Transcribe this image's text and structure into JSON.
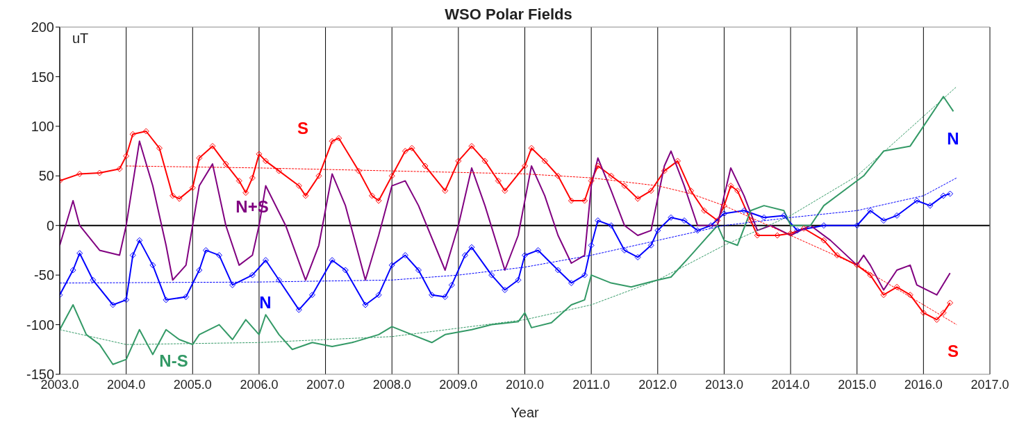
{
  "chart_data": {
    "type": "line",
    "title": "WSO Polar Fields",
    "xlabel": "Year",
    "ylabel": "uT",
    "xlim": [
      2003,
      2017
    ],
    "ylim": [
      -150,
      200
    ],
    "xticks": [
      {
        "value": 2003,
        "label": "2003.0"
      },
      {
        "value": 2004,
        "label": "2004.0"
      },
      {
        "value": 2005,
        "label": "2005.0"
      },
      {
        "value": 2006,
        "label": "2006.0"
      },
      {
        "value": 2007,
        "label": "2007.0"
      },
      {
        "value": 2008,
        "label": "2008.0"
      },
      {
        "value": 2009,
        "label": "2009.0"
      },
      {
        "value": 2010,
        "label": "2010.0"
      },
      {
        "value": 2011,
        "label": "2011.0"
      },
      {
        "value": 2012,
        "label": "2012.0"
      },
      {
        "value": 2013,
        "label": "2013.0"
      },
      {
        "value": 2014,
        "label": "2014.0"
      },
      {
        "value": 2015,
        "label": "2015.0"
      },
      {
        "value": 2016,
        "label": "2016.0"
      },
      {
        "value": 2017,
        "label": "2017.0"
      }
    ],
    "yticks": [
      -150,
      -100,
      -50,
      0,
      50,
      100,
      150,
      200
    ],
    "grid": "x",
    "ref_lines": [
      {
        "axis": "y",
        "value": 0,
        "color": "#000000"
      }
    ],
    "series": [
      {
        "name": "S",
        "color": "#ff0000",
        "marker": "diamond",
        "line_style": "solid",
        "x": [
          2003.0,
          2003.3,
          2003.6,
          2003.9,
          2004.0,
          2004.1,
          2004.3,
          2004.5,
          2004.7,
          2004.8,
          2005.0,
          2005.1,
          2005.3,
          2005.5,
          2005.7,
          2005.8,
          2005.9,
          2006.0,
          2006.1,
          2006.3,
          2006.6,
          2006.7,
          2006.9,
          2007.1,
          2007.2,
          2007.5,
          2007.7,
          2007.8,
          2008.0,
          2008.2,
          2008.3,
          2008.5,
          2008.8,
          2009.0,
          2009.2,
          2009.4,
          2009.6,
          2009.7,
          2010.0,
          2010.1,
          2010.3,
          2010.5,
          2010.7,
          2010.9,
          2011.0,
          2011.1,
          2011.3,
          2011.5,
          2011.7,
          2011.9,
          2012.1,
          2012.3,
          2012.5,
          2012.7,
          2012.9,
          2013.0,
          2013.1,
          2013.2,
          2013.4,
          2013.5,
          2013.8,
          2014.0,
          2014.2,
          2014.5,
          2014.7,
          2015.0,
          2015.2,
          2015.4,
          2015.6,
          2015.8,
          2016.0,
          2016.2,
          2016.3,
          2016.4
        ],
        "values": [
          45,
          52,
          53,
          57,
          70,
          92,
          95,
          78,
          30,
          27,
          38,
          68,
          80,
          62,
          45,
          33,
          48,
          72,
          65,
          55,
          40,
          30,
          50,
          85,
          88,
          55,
          30,
          25,
          50,
          75,
          78,
          60,
          35,
          65,
          80,
          65,
          45,
          35,
          60,
          78,
          65,
          50,
          25,
          25,
          45,
          60,
          50,
          40,
          27,
          35,
          55,
          65,
          35,
          15,
          5,
          20,
          40,
          35,
          5,
          -10,
          -10,
          -8,
          -3,
          -15,
          -30,
          -40,
          -50,
          -70,
          -62,
          -70,
          -88,
          -95,
          -88,
          -78
        ]
      },
      {
        "name": "N",
        "color": "#0000ff",
        "marker": "diamond",
        "line_style": "solid",
        "x": [
          2003.0,
          2003.2,
          2003.3,
          2003.5,
          2003.8,
          2004.0,
          2004.1,
          2004.2,
          2004.4,
          2004.6,
          2004.9,
          2005.1,
          2005.2,
          2005.4,
          2005.6,
          2005.9,
          2006.1,
          2006.3,
          2006.6,
          2006.8,
          2007.1,
          2007.3,
          2007.6,
          2007.8,
          2008.0,
          2008.2,
          2008.4,
          2008.6,
          2008.8,
          2008.9,
          2009.1,
          2009.2,
          2009.5,
          2009.7,
          2009.9,
          2010.0,
          2010.2,
          2010.5,
          2010.7,
          2010.9,
          2011.0,
          2011.1,
          2011.3,
          2011.5,
          2011.7,
          2011.9,
          2012.0,
          2012.2,
          2012.4,
          2012.6,
          2012.8,
          2013.0,
          2013.3,
          2013.6,
          2013.9,
          2014.1,
          2014.5,
          2015.0,
          2015.2,
          2015.4,
          2015.6,
          2015.9,
          2016.1,
          2016.3,
          2016.4
        ],
        "values": [
          -70,
          -45,
          -28,
          -55,
          -80,
          -75,
          -30,
          -15,
          -40,
          -75,
          -72,
          -45,
          -25,
          -30,
          -60,
          -50,
          -35,
          -55,
          -85,
          -70,
          -35,
          -45,
          -80,
          -70,
          -40,
          -30,
          -45,
          -70,
          -72,
          -60,
          -30,
          -22,
          -50,
          -65,
          -55,
          -30,
          -25,
          -45,
          -58,
          -50,
          -20,
          5,
          0,
          -25,
          -32,
          -20,
          -5,
          8,
          5,
          -5,
          0,
          12,
          15,
          8,
          10,
          -5,
          0,
          0,
          15,
          5,
          10,
          25,
          20,
          30,
          32
        ]
      },
      {
        "name": "N+S",
        "color": "#800080",
        "marker": "none",
        "line_style": "solid",
        "x": [
          2003.0,
          2003.2,
          2003.3,
          2003.6,
          2003.9,
          2004.0,
          2004.2,
          2004.4,
          2004.6,
          2004.7,
          2004.9,
          2005.1,
          2005.3,
          2005.5,
          2005.7,
          2005.9,
          2006.0,
          2006.1,
          2006.4,
          2006.7,
          2006.9,
          2007.1,
          2007.3,
          2007.6,
          2007.8,
          2008.0,
          2008.2,
          2008.4,
          2008.8,
          2009.0,
          2009.2,
          2009.4,
          2009.7,
          2009.9,
          2010.1,
          2010.3,
          2010.5,
          2010.7,
          2010.9,
          2011.0,
          2011.1,
          2011.3,
          2011.5,
          2011.7,
          2011.9,
          2012.1,
          2012.2,
          2012.4,
          2012.6,
          2012.9,
          2013.0,
          2013.1,
          2013.3,
          2013.5,
          2013.7,
          2014.0,
          2014.3,
          2014.6,
          2015.0,
          2015.1,
          2015.2,
          2015.4,
          2015.6,
          2015.8,
          2015.9,
          2016.2,
          2016.4
        ],
        "values": [
          -20,
          25,
          0,
          -25,
          -30,
          0,
          85,
          40,
          -20,
          -55,
          -40,
          40,
          62,
          0,
          -40,
          -30,
          0,
          40,
          0,
          -55,
          -20,
          52,
          20,
          -55,
          -10,
          40,
          45,
          20,
          -45,
          0,
          58,
          20,
          -45,
          -10,
          60,
          30,
          -10,
          -38,
          -30,
          40,
          68,
          35,
          0,
          -10,
          -5,
          60,
          75,
          40,
          0,
          0,
          30,
          58,
          30,
          -5,
          0,
          -10,
          0,
          -15,
          -40,
          -30,
          -40,
          -65,
          -45,
          -40,
          -60,
          -70,
          -48
        ]
      },
      {
        "name": "N-S",
        "color": "#339966",
        "marker": "none",
        "line_style": "solid",
        "x": [
          2003.0,
          2003.2,
          2003.4,
          2003.6,
          2003.8,
          2004.0,
          2004.2,
          2004.4,
          2004.6,
          2004.8,
          2005.0,
          2005.1,
          2005.4,
          2005.6,
          2005.8,
          2006.0,
          2006.1,
          2006.3,
          2006.5,
          2006.8,
          2007.1,
          2007.4,
          2007.8,
          2008.0,
          2008.3,
          2008.6,
          2008.8,
          2009.2,
          2009.5,
          2009.9,
          2010.0,
          2010.1,
          2010.4,
          2010.7,
          2010.9,
          2011.0,
          2011.3,
          2011.6,
          2012.0,
          2012.2,
          2012.5,
          2012.9,
          2013.0,
          2013.2,
          2013.4,
          2013.6,
          2013.9,
          2014.0,
          2014.3,
          2014.5,
          2014.9,
          2015.1,
          2015.4,
          2015.8,
          2016.0,
          2016.3,
          2016.45
        ],
        "values": [
          -105,
          -80,
          -110,
          -120,
          -140,
          -135,
          -105,
          -130,
          -105,
          -115,
          -120,
          -110,
          -100,
          -115,
          -95,
          -110,
          -90,
          -110,
          -125,
          -118,
          -122,
          -118,
          -110,
          -102,
          -110,
          -118,
          -110,
          -105,
          -100,
          -97,
          -88,
          -103,
          -98,
          -80,
          -75,
          -50,
          -58,
          -62,
          -55,
          -52,
          -30,
          0,
          -15,
          -20,
          15,
          20,
          15,
          0,
          0,
          20,
          40,
          50,
          75,
          80,
          100,
          130,
          115
        ]
      },
      {
        "color": "#ff0000",
        "marker": "none",
        "line_style": "dashed",
        "x": [
          2004,
          2006,
          2008,
          2010,
          2011,
          2012,
          2012.5,
          2013,
          2013.5,
          2014,
          2015,
          2016,
          2016.5
        ],
        "values": [
          60,
          58,
          55,
          52,
          48,
          40,
          32,
          20,
          5,
          -10,
          -40,
          -80,
          -100
        ]
      },
      {
        "color": "#0000ff",
        "marker": "none",
        "line_style": "dashed",
        "x": [
          2003,
          2006,
          2008,
          2009,
          2010,
          2011,
          2012,
          2013,
          2014,
          2015,
          2016,
          2016.5
        ],
        "values": [
          -58,
          -57,
          -55,
          -50,
          -42,
          -30,
          -15,
          0,
          8,
          15,
          30,
          48
        ]
      },
      {
        "color": "#339966",
        "marker": "none",
        "line_style": "dashed",
        "x": [
          2003,
          2004,
          2006,
          2008,
          2010,
          2011,
          2012,
          2013,
          2014,
          2015,
          2016,
          2016.5
        ],
        "values": [
          -105,
          -120,
          -118,
          -112,
          -95,
          -80,
          -55,
          -20,
          10,
          50,
          110,
          140
        ]
      }
    ],
    "annotations": [
      "N",
      "S"
    ]
  }
}
